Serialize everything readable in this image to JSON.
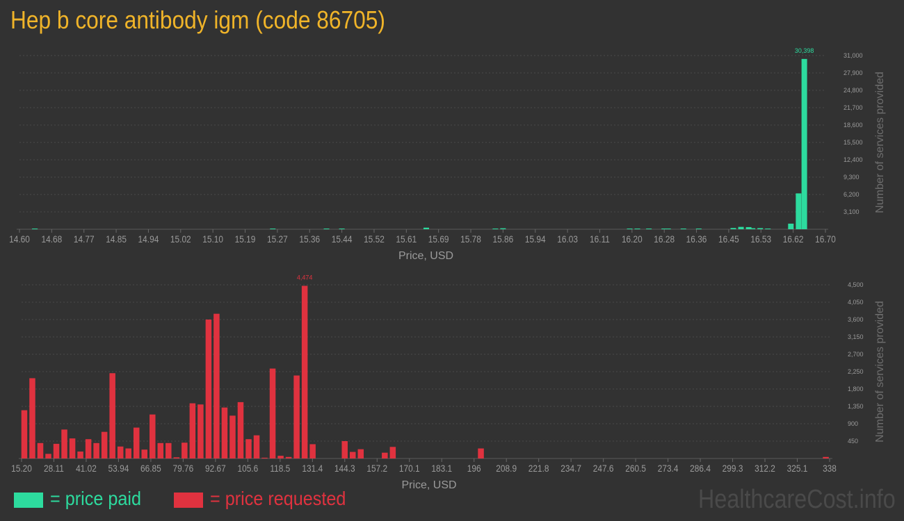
{
  "title": "Hep b core antibody igm (code 86705)",
  "colors": {
    "paid": "#2ddb9e",
    "requested": "#e0323f",
    "title": "#f0b429",
    "axis_text": "#9a9a9a",
    "grid": "#4a4a4a"
  },
  "legend": {
    "paid_label": "= price paid",
    "requested_label": "= price requested"
  },
  "watermark": "HealthcareCost.info",
  "chart_data": [
    {
      "type": "bar",
      "series_name": "price paid",
      "xlabel": "Price, USD",
      "ylabel": "Number of services provided",
      "x_tick_labels": [
        "14.60",
        "14.68",
        "14.77",
        "14.85",
        "14.94",
        "15.02",
        "15.10",
        "15.19",
        "15.27",
        "15.36",
        "15.44",
        "15.52",
        "15.61",
        "15.69",
        "15.78",
        "15.86",
        "15.94",
        "16.03",
        "16.11",
        "16.20",
        "16.28",
        "16.36",
        "16.45",
        "16.53",
        "16.62",
        "16.70"
      ],
      "y_tick_labels": [
        "3,100",
        "6,200",
        "9,300",
        "12,400",
        "15,500",
        "18,600",
        "21,700",
        "24,800",
        "27,900",
        "31,000"
      ],
      "ylim": [
        0,
        31000
      ],
      "xlim": [
        14.6,
        16.7
      ],
      "peak_label": "30,398",
      "bars": [
        {
          "x": 14.64,
          "value": 100
        },
        {
          "x": 15.26,
          "value": 90
        },
        {
          "x": 15.4,
          "value": 60
        },
        {
          "x": 15.44,
          "value": 100
        },
        {
          "x": 15.66,
          "value": 280
        },
        {
          "x": 15.84,
          "value": 90
        },
        {
          "x": 15.86,
          "value": 170
        },
        {
          "x": 16.19,
          "value": 90
        },
        {
          "x": 16.21,
          "value": 60
        },
        {
          "x": 16.24,
          "value": 80
        },
        {
          "x": 16.28,
          "value": 60
        },
        {
          "x": 16.29,
          "value": 60
        },
        {
          "x": 16.33,
          "value": 60
        },
        {
          "x": 16.37,
          "value": 60
        },
        {
          "x": 16.46,
          "value": 220
        },
        {
          "x": 16.48,
          "value": 420
        },
        {
          "x": 16.5,
          "value": 380
        },
        {
          "x": 16.51,
          "value": 180
        },
        {
          "x": 16.53,
          "value": 200
        },
        {
          "x": 16.55,
          "value": 110
        },
        {
          "x": 16.61,
          "value": 1000
        },
        {
          "x": 16.63,
          "value": 6400
        },
        {
          "x": 16.645,
          "value": 30398
        }
      ]
    },
    {
      "type": "bar",
      "series_name": "price requested",
      "xlabel": "Price, USD",
      "ylabel": "Number of services provided",
      "x_tick_labels": [
        "15.20",
        "28.11",
        "41.02",
        "53.94",
        "66.85",
        "79.76",
        "92.67",
        "105.6",
        "118.5",
        "131.4",
        "144.3",
        "157.2",
        "170.1",
        "183.1",
        "196",
        "208.9",
        "221.8",
        "234.7",
        "247.6",
        "260.5",
        "273.4",
        "286.4",
        "299.3",
        "312.2",
        "325.1",
        "338"
      ],
      "y_tick_labels": [
        "450",
        "900",
        "1,350",
        "1,800",
        "2,250",
        "2,700",
        "3,150",
        "3,600",
        "4,050",
        "4,500"
      ],
      "ylim": [
        0,
        4500
      ],
      "xlim": [
        15.2,
        338
      ],
      "peak_label": "4,474",
      "bars": [
        {
          "x": 16.3,
          "value": 1250
        },
        {
          "x": 19.5,
          "value": 2080
        },
        {
          "x": 22.7,
          "value": 400
        },
        {
          "x": 25.9,
          "value": 120
        },
        {
          "x": 29.1,
          "value": 380
        },
        {
          "x": 32.3,
          "value": 750
        },
        {
          "x": 35.5,
          "value": 520
        },
        {
          "x": 38.7,
          "value": 180
        },
        {
          "x": 41.9,
          "value": 500
        },
        {
          "x": 45.1,
          "value": 400
        },
        {
          "x": 48.3,
          "value": 690
        },
        {
          "x": 51.5,
          "value": 2210
        },
        {
          "x": 54.7,
          "value": 310
        },
        {
          "x": 57.9,
          "value": 260
        },
        {
          "x": 61.1,
          "value": 800
        },
        {
          "x": 64.3,
          "value": 230
        },
        {
          "x": 67.5,
          "value": 1140
        },
        {
          "x": 70.7,
          "value": 400
        },
        {
          "x": 73.9,
          "value": 400
        },
        {
          "x": 77.1,
          "value": 30
        },
        {
          "x": 80.3,
          "value": 410
        },
        {
          "x": 83.5,
          "value": 1430
        },
        {
          "x": 86.7,
          "value": 1400
        },
        {
          "x": 89.9,
          "value": 3600
        },
        {
          "x": 93.1,
          "value": 3750
        },
        {
          "x": 96.3,
          "value": 1320
        },
        {
          "x": 99.5,
          "value": 1110
        },
        {
          "x": 102.7,
          "value": 1460
        },
        {
          "x": 105.9,
          "value": 500
        },
        {
          "x": 109.1,
          "value": 600
        },
        {
          "x": 112.3,
          "value": 20
        },
        {
          "x": 115.5,
          "value": 2330
        },
        {
          "x": 118.7,
          "value": 70
        },
        {
          "x": 121.9,
          "value": 40
        },
        {
          "x": 125.1,
          "value": 2150
        },
        {
          "x": 128.3,
          "value": 4474
        },
        {
          "x": 131.5,
          "value": 370
        },
        {
          "x": 144.3,
          "value": 450
        },
        {
          "x": 147.5,
          "value": 170
        },
        {
          "x": 150.7,
          "value": 240
        },
        {
          "x": 160.3,
          "value": 150
        },
        {
          "x": 163.5,
          "value": 300
        },
        {
          "x": 198.7,
          "value": 260
        },
        {
          "x": 336.5,
          "value": 40
        }
      ]
    }
  ]
}
